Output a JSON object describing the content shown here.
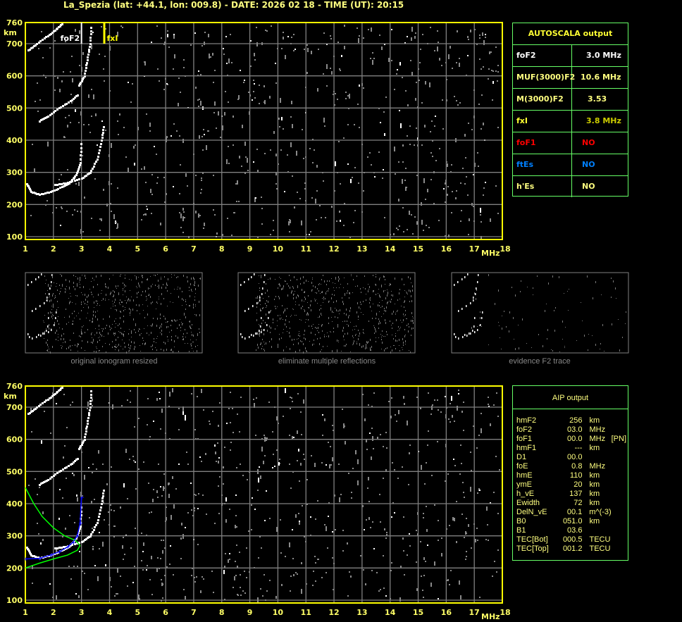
{
  "header": {
    "title": "La_Spezia (lat: +44.1, lon: 009.8) - DATE: 2026 02 18 - TIME (UT): 20:15"
  },
  "colors": {
    "axis": "#ffff00",
    "grid": "#808080",
    "panel_border": "#66ff66",
    "foF1": "#ff0000",
    "ftEs": "#0080ff",
    "profile": "#0000ff",
    "model": "#00ff00"
  },
  "chart_data": [
    {
      "type": "scatter",
      "title": "",
      "xlabel": "MHz",
      "ylabel": "km",
      "xlim": [
        1,
        18
      ],
      "ylim": [
        100,
        760
      ],
      "xticks": [
        "1",
        "2",
        "3",
        "4",
        "5",
        "6",
        "7",
        "8",
        "9",
        "10",
        "11",
        "12",
        "13",
        "14",
        "15",
        "16",
        "17",
        "18"
      ],
      "yticks": [
        "100",
        "200",
        "300",
        "400",
        "500",
        "600",
        "700",
        "760"
      ],
      "grid": true,
      "markers": [
        {
          "label": "foF2",
          "freq": 3.0,
          "color": "#ffffff"
        },
        {
          "label": "fxI",
          "freq": 3.8,
          "color": "#ffff00"
        }
      ],
      "traces": {
        "o_trace": [
          [
            1.05,
            265
          ],
          [
            1.2,
            240
          ],
          [
            1.5,
            232
          ],
          [
            1.9,
            240
          ],
          [
            2.3,
            255
          ],
          [
            2.6,
            270
          ],
          [
            2.8,
            292
          ],
          [
            2.95,
            330
          ],
          [
            3.0,
            400
          ]
        ],
        "x_trace": [
          [
            2.05,
            262
          ],
          [
            2.5,
            268
          ],
          [
            3.0,
            282
          ],
          [
            3.3,
            300
          ],
          [
            3.55,
            340
          ],
          [
            3.72,
            400
          ],
          [
            3.8,
            450
          ]
        ],
        "o_trace_2hop": [
          [
            1.5,
            460
          ],
          [
            1.8,
            475
          ],
          [
            2.2,
            500
          ],
          [
            2.6,
            522
          ],
          [
            2.9,
            545
          ]
        ],
        "o_trace_3hop": [
          [
            1.1,
            680
          ],
          [
            1.4,
            700
          ],
          [
            1.8,
            725
          ],
          [
            2.1,
            745
          ],
          [
            2.35,
            765
          ]
        ],
        "x_trace_2hop": [
          [
            2.9,
            570
          ],
          [
            3.1,
            600
          ],
          [
            3.2,
            650
          ],
          [
            3.3,
            700
          ],
          [
            3.35,
            760
          ]
        ]
      }
    },
    {
      "type": "scatter",
      "title": "",
      "xlabel": "MHz",
      "ylabel": "km",
      "xlim": [
        1,
        18
      ],
      "ylim": [
        100,
        760
      ],
      "xticks": [
        "1",
        "2",
        "3",
        "4",
        "5",
        "6",
        "7",
        "8",
        "9",
        "10",
        "11",
        "12",
        "13",
        "14",
        "15",
        "16",
        "17",
        "18"
      ],
      "yticks": [
        "100",
        "200",
        "300",
        "400",
        "500",
        "600",
        "700",
        "760"
      ],
      "grid": true,
      "profile_true_height": [
        [
          1.0,
          228
        ],
        [
          1.5,
          230
        ],
        [
          1.9,
          240
        ],
        [
          2.2,
          250
        ],
        [
          2.5,
          265
        ],
        [
          2.7,
          280
        ],
        [
          2.85,
          300
        ],
        [
          2.95,
          340
        ],
        [
          3.0,
          420
        ]
      ],
      "model_curve_upper": [
        [
          1.0,
          450
        ],
        [
          1.3,
          400
        ],
        [
          1.6,
          360
        ],
        [
          2.0,
          325
        ],
        [
          2.4,
          300
        ],
        [
          2.8,
          285
        ],
        [
          2.95,
          270
        ]
      ],
      "model_curve_lower": [
        [
          1.0,
          200
        ],
        [
          1.5,
          215
        ],
        [
          2.0,
          228
        ],
        [
          2.5,
          240
        ],
        [
          2.85,
          255
        ],
        [
          2.95,
          270
        ]
      ]
    }
  ],
  "thumbnails": [
    {
      "caption": "original ionogram resized"
    },
    {
      "caption": "eliminate multiple reflections"
    },
    {
      "caption": "evidence F2 trace"
    }
  ],
  "autoscala": {
    "title": "AUTOSCALA output",
    "rows": [
      {
        "key": "foF2",
        "value": "3.0 MHz",
        "kcolor": "#ffffff",
        "vcolor": "#ffffff"
      },
      {
        "key": "MUF(3000)F2",
        "value": "10.6 MHz",
        "kcolor": "#ffff80",
        "vcolor": "#ffff80"
      },
      {
        "key": "M(3000)F2",
        "value": "3.53",
        "kcolor": "#ffff80",
        "vcolor": "#ffff80"
      },
      {
        "key": "fxI",
        "value": "3.8 MHz",
        "kcolor": "#ffff33",
        "vcolor": "#cccc00"
      },
      {
        "key": "foF1",
        "value": "NO",
        "kcolor": "#ff0000",
        "vcolor": "#ff0000"
      },
      {
        "key": "ftEs",
        "value": "NO",
        "kcolor": "#0080ff",
        "vcolor": "#0080ff"
      },
      {
        "key": "h'Es",
        "value": "NO",
        "kcolor": "#ffff80",
        "vcolor": "#ffff80"
      }
    ]
  },
  "aip": {
    "title": "AIP output",
    "rows": [
      {
        "key": "hmF2",
        "value": "256",
        "unit": "km",
        "extra": ""
      },
      {
        "key": "foF2",
        "value": "03.0",
        "unit": "MHz",
        "extra": ""
      },
      {
        "key": "foF1",
        "value": "00.0",
        "unit": "MHz",
        "extra": "[PN]"
      },
      {
        "key": "hmF1",
        "value": "---",
        "unit": "km",
        "extra": ""
      },
      {
        "key": "D1",
        "value": "00.0",
        "unit": "",
        "extra": ""
      },
      {
        "key": "foE",
        "value": "0.8",
        "unit": "MHz",
        "extra": ""
      },
      {
        "key": "hmE",
        "value": "110",
        "unit": "km",
        "extra": ""
      },
      {
        "key": "ymE",
        "value": "20",
        "unit": "km",
        "extra": ""
      },
      {
        "key": "h_vE",
        "value": "137",
        "unit": "km",
        "extra": ""
      },
      {
        "key": "Ewidth",
        "value": "72",
        "unit": "km",
        "extra": ""
      },
      {
        "key": "DelN_vE",
        "value": "00.1",
        "unit": "m^(-3)",
        "extra": ""
      },
      {
        "key": "B0",
        "value": "051.0",
        "unit": "km",
        "extra": ""
      },
      {
        "key": "B1",
        "value": "03.6",
        "unit": "",
        "extra": ""
      },
      {
        "key": "TEC[Bot]",
        "value": "000.5",
        "unit": "TECU",
        "extra": ""
      },
      {
        "key": "TEC[Top]",
        "value": "001.2",
        "unit": "TECU",
        "extra": ""
      }
    ]
  }
}
